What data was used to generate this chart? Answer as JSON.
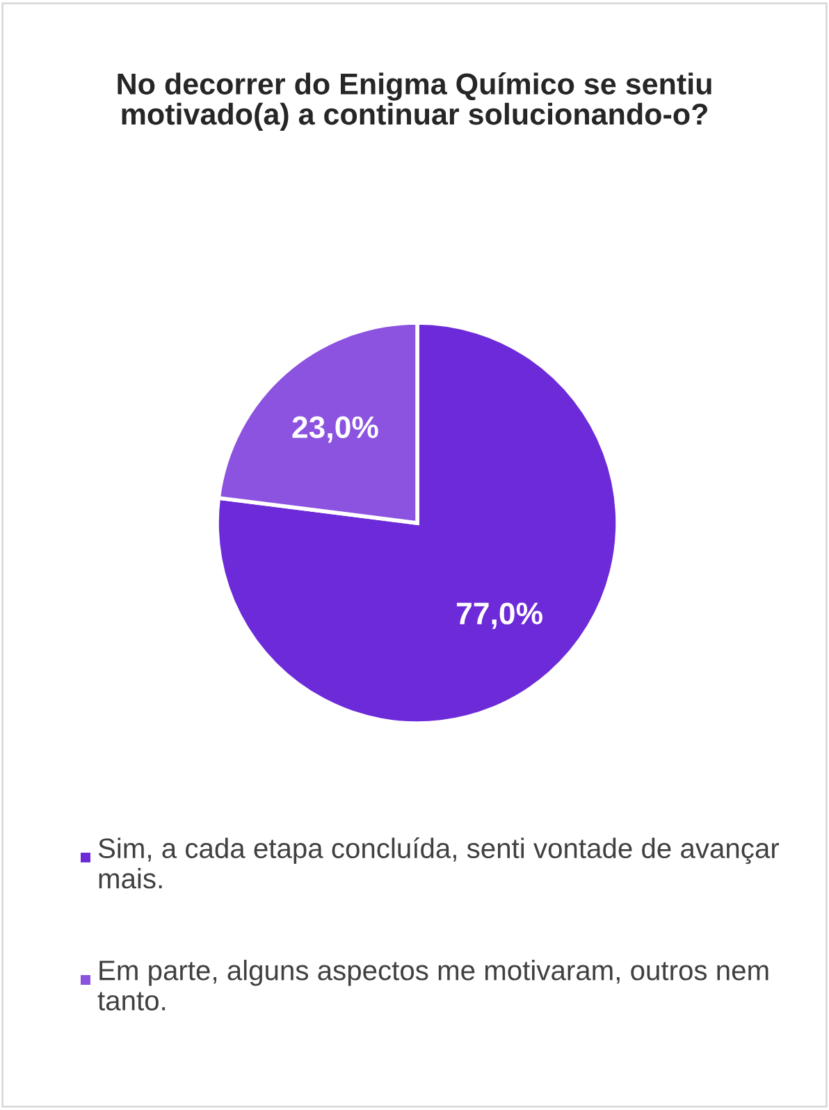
{
  "chart_data": {
    "type": "pie",
    "title": "No decorrer do Enigma Químico se sentiu motivado(a) a continuar solucionando-o?",
    "categories": [
      "Sim, a cada etapa concluída, senti vontade de avançar mais.",
      "Em parte, alguns aspectos me motivaram, outros nem tanto."
    ],
    "values": [
      77.0,
      23.0
    ],
    "colors": [
      "#6d2ad8",
      "#8c52e0"
    ],
    "value_labels": [
      "77,0%",
      "23,0%"
    ],
    "legend": "bottom"
  }
}
